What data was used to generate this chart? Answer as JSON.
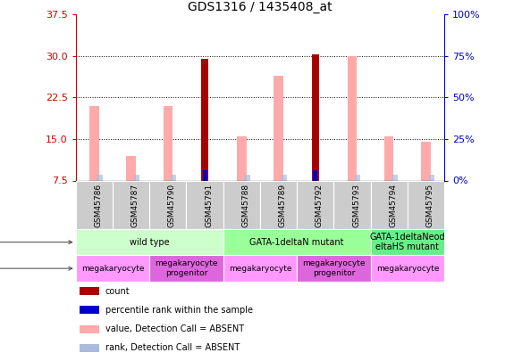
{
  "title": "GDS1316 / 1435408_at",
  "samples": [
    "GSM45786",
    "GSM45787",
    "GSM45790",
    "GSM45791",
    "GSM45788",
    "GSM45789",
    "GSM45792",
    "GSM45793",
    "GSM45794",
    "GSM45795"
  ],
  "pink_value": [
    21.0,
    12.0,
    21.0,
    null,
    15.5,
    26.5,
    null,
    30.0,
    15.5,
    14.5
  ],
  "lightblue_rank": [
    8.5,
    8.5,
    8.5,
    null,
    8.5,
    8.5,
    null,
    8.5,
    8.5,
    8.5
  ],
  "dark_red_count": [
    null,
    null,
    null,
    29.5,
    null,
    null,
    30.3,
    null,
    null,
    null
  ],
  "blue_rank": [
    null,
    null,
    null,
    9.3,
    null,
    null,
    9.3,
    null,
    null,
    null
  ],
  "ylim": [
    7.5,
    37.5
  ],
  "yticks_left": [
    7.5,
    15.0,
    22.5,
    30.0,
    37.5
  ],
  "yticks_right_vals": [
    0,
    25,
    50,
    75,
    100
  ],
  "yticklabels_right": [
    "0%",
    "25%",
    "50%",
    "75%",
    "100%"
  ],
  "left_axis_color": "#cc0000",
  "right_axis_color": "#0000cc",
  "genotype_groups": [
    {
      "label": "wild type",
      "start": 0,
      "end": 4,
      "color": "#ccffcc"
    },
    {
      "label": "GATA-1deltaN mutant",
      "start": 4,
      "end": 8,
      "color": "#99ff99"
    },
    {
      "label": "GATA-1deltaNeod\neltaHS mutant",
      "start": 8,
      "end": 10,
      "color": "#66ee88"
    }
  ],
  "cell_type_groups": [
    {
      "label": "megakaryocyte",
      "start": 0,
      "end": 2,
      "color": "#ff99ff"
    },
    {
      "label": "megakaryocyte\nprogenitor",
      "start": 2,
      "end": 4,
      "color": "#dd66dd"
    },
    {
      "label": "megakaryocyte",
      "start": 4,
      "end": 6,
      "color": "#ff99ff"
    },
    {
      "label": "megakaryocyte\nprogenitor",
      "start": 6,
      "end": 8,
      "color": "#dd66dd"
    },
    {
      "label": "megakaryocyte",
      "start": 8,
      "end": 10,
      "color": "#ff99ff"
    }
  ],
  "pink_color": "#ffaaaa",
  "lightblue_color": "#aabbdd",
  "darkred_color": "#aa0000",
  "blue_color": "#0000cc",
  "gray_sample_color": "#cccccc",
  "legend_items": [
    {
      "color": "#aa0000",
      "label": "count"
    },
    {
      "color": "#0000cc",
      "label": "percentile rank within the sample"
    },
    {
      "color": "#ffaaaa",
      "label": "value, Detection Call = ABSENT"
    },
    {
      "color": "#aabbdd",
      "label": "rank, Detection Call = ABSENT"
    }
  ]
}
